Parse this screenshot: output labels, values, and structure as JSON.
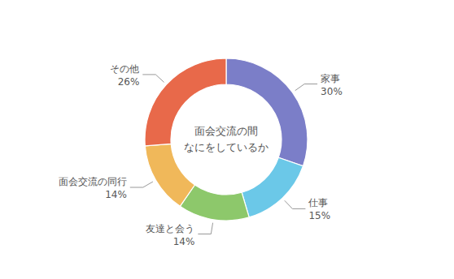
{
  "chart_data": {
    "type": "pie",
    "title": "面会交流の間",
    "subtitle": "なにをしているか",
    "categories": [
      "家事",
      "仕事",
      "友達と会う",
      "面会交流の同行",
      "その他"
    ],
    "values": [
      30,
      15,
      14,
      14,
      26
    ],
    "value_labels": [
      "30%",
      "15%",
      "14%",
      "14%",
      "26%"
    ],
    "colors": [
      "#7b7ec8",
      "#6bc8e8",
      "#8dc86b",
      "#f0b85a",
      "#e8694a"
    ],
    "data_labels": true
  }
}
